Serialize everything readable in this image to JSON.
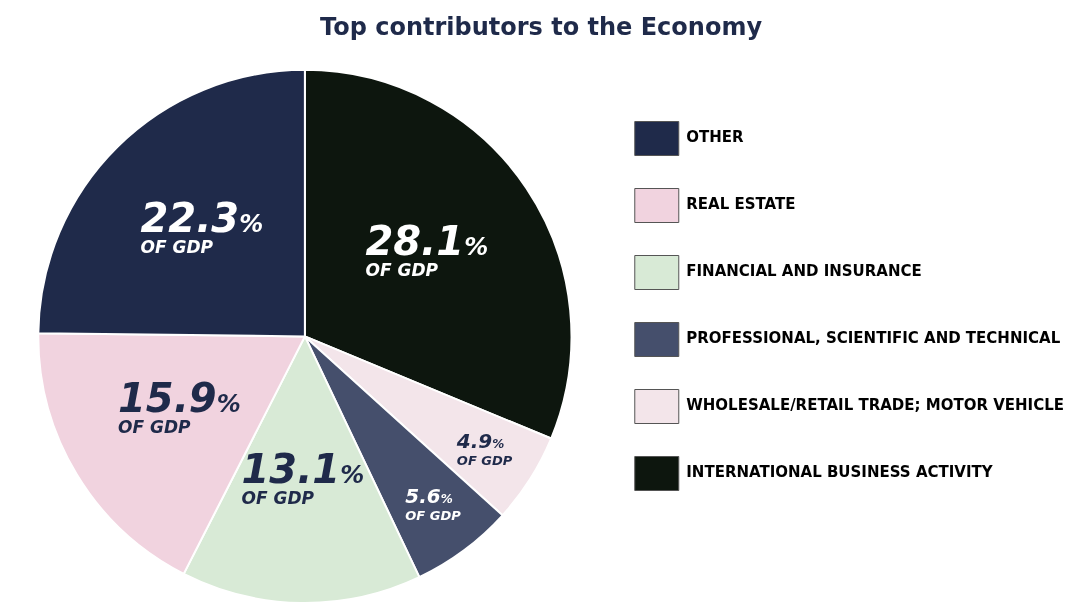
{
  "chart_data": {
    "type": "pie",
    "title": "Top contributors to the Economy",
    "categories": [
      "INTERNATIONAL BUSINESS ACTIVITY",
      "WHOLESALE/RETAIL TRADE; MOTOR VEHICLE",
      "PROFESSIONAL, SCIENTIFIC AND TECHNICAL",
      "FINANCIAL AND INSURANCE",
      "REAL ESTATE",
      "OTHER"
    ],
    "values": [
      28.1,
      4.9,
      5.6,
      13.1,
      15.9,
      22.3
    ],
    "colors": [
      "#0d160e",
      "#f3e5ea",
      "#454f6c",
      "#d8ead6",
      "#f1d3df",
      "#1f2a4a"
    ],
    "value_labels": [
      "28.1% OF GDP",
      "4.9% OF GDP",
      "5.6% OF GDP",
      "13.1% OF GDP",
      "15.9% OF GDP",
      "22.3% OF GDP"
    ],
    "legend": "right"
  }
}
